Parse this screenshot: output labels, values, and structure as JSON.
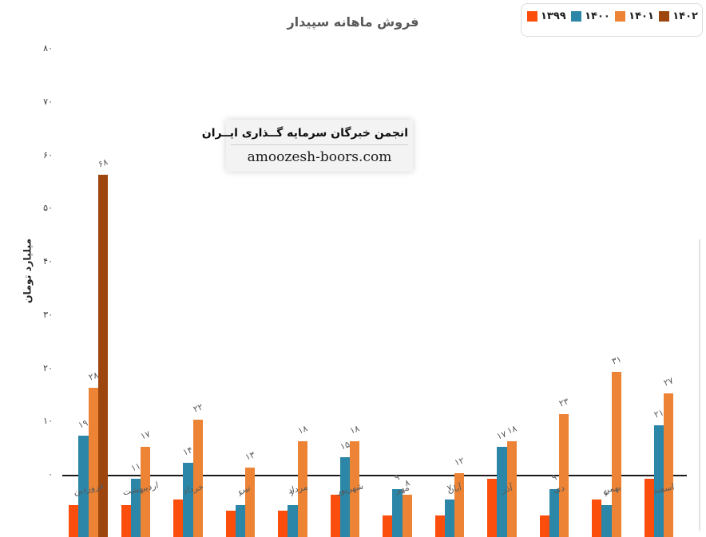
{
  "watermark": {
    "line1": "انجمن خبرگان سرمایه گــذاری ایــران",
    "line2": "amoozesh-boors.com"
  },
  "chart_data": {
    "type": "bar",
    "title": "فروش ماهانه سپیدار",
    "xlabel": "",
    "ylabel": "میلیارد تومان",
    "ylim": [
      0,
      80
    ],
    "grid": false,
    "legend_position": "top-right",
    "y_ticks": [
      {
        "value": 0,
        "label": "۰"
      },
      {
        "value": 10,
        "label": "۱۰"
      },
      {
        "value": 20,
        "label": "۲۰"
      },
      {
        "value": 30,
        "label": "۳۰"
      },
      {
        "value": 40,
        "label": "۴۰"
      },
      {
        "value": 50,
        "label": "۵۰"
      },
      {
        "value": 60,
        "label": "۶۰"
      },
      {
        "value": 70,
        "label": "۷۰"
      },
      {
        "value": 80,
        "label": "۸۰"
      }
    ],
    "categories": [
      "فروردین",
      "اردیبهشت",
      "خرداد",
      "تیر",
      "مرداد",
      "شهریور",
      "مهر",
      "آبان",
      "آذر",
      "دی",
      "بهمن",
      "اسفند"
    ],
    "series": [
      {
        "name": "۱۳۹۹",
        "color": "#FB4E0D",
        "values": [
          6,
          6,
          7,
          5,
          5,
          8,
          4,
          4,
          11,
          4,
          7,
          11
        ],
        "labels": [
          null,
          null,
          null,
          null,
          null,
          null,
          null,
          null,
          null,
          null,
          null,
          null
        ]
      },
      {
        "name": "۱۴۰۰",
        "color": "#2B86A8",
        "values": [
          19,
          11,
          14,
          6,
          6,
          15,
          9,
          7,
          17,
          9,
          6,
          21
        ],
        "labels": [
          "۱۹",
          "۱۱",
          "۱۴",
          "۶",
          "۶",
          "۱۵",
          "۹",
          "۷",
          "۱۷",
          "۹",
          "۶",
          "۲۱"
        ]
      },
      {
        "name": "۱۴۰۱",
        "color": "#EC8335",
        "values": [
          28,
          17,
          22,
          13,
          18,
          18,
          8,
          12,
          18,
          23,
          31,
          27
        ],
        "labels": [
          "۲۸",
          "۱۷",
          "۲۲",
          "۱۳",
          "۱۸",
          "۱۸",
          "۸",
          "۱۲",
          "۱۸",
          "۲۳",
          "۳۱",
          "۲۷"
        ]
      },
      {
        "name": "۱۴۰۲",
        "color": "#9D470F",
        "values": [
          68,
          null,
          null,
          null,
          null,
          null,
          null,
          null,
          null,
          null,
          null,
          null
        ],
        "labels": [
          "۶۸",
          null,
          null,
          null,
          null,
          null,
          null,
          null,
          null,
          null,
          null,
          null
        ]
      }
    ]
  }
}
